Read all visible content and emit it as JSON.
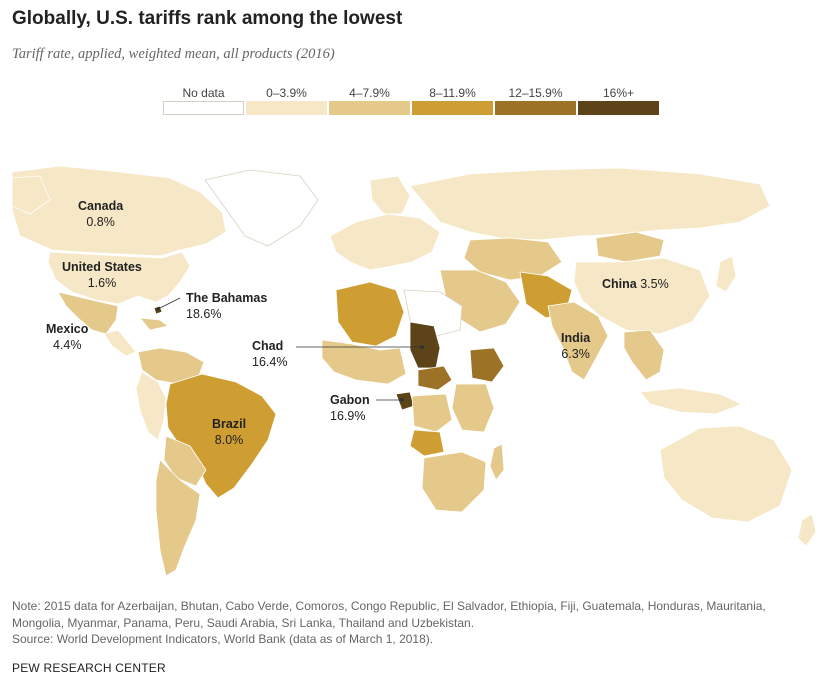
{
  "title": "Globally, U.S. tariffs rank among the lowest",
  "subtitle": "Tariff rate, applied, weighted mean, all products (2016)",
  "legend": [
    {
      "label": "No data",
      "color": "#ffffff"
    },
    {
      "label": "0–3.9%",
      "color": "#f6e8c6"
    },
    {
      "label": "4–7.9%",
      "color": "#e5c98a"
    },
    {
      "label": "8–11.9%",
      "color": "#cf9e33"
    },
    {
      "label": "12–15.9%",
      "color": "#9c7226"
    },
    {
      "label": "16%+",
      "color": "#5c4318"
    }
  ],
  "labels": {
    "canada": {
      "name": "Canada",
      "value": "0.8%"
    },
    "us": {
      "name": "United States",
      "value": "1.6%"
    },
    "bahamas": {
      "name": "The Bahamas",
      "value": "18.6%"
    },
    "mexico": {
      "name": "Mexico",
      "value": "4.4%"
    },
    "chad": {
      "name": "Chad",
      "value": "16.4%"
    },
    "brazil": {
      "name": "Brazil",
      "value": "8.0%"
    },
    "gabon": {
      "name": "Gabon",
      "value": "16.9%"
    },
    "china": {
      "name": "China",
      "value": "3.5%"
    },
    "india": {
      "name": "India",
      "value": "6.3%"
    }
  },
  "note": "Note: 2015 data for Azerbaijan, Bhutan, Cabo Verde, Comoros, Congo Republic, El Salvador, Ethiopia, Fiji, Guatemala, Honduras, Mauritania, Mongolia, Myanmar, Panama, Peru, Saudi Arabia, Sri Lanka, Thailand and Uzbekistan.",
  "source": "Source: World Development Indicators, World Bank (data as of March 1, 2018).",
  "brand": "PEW RESEARCH CENTER"
}
